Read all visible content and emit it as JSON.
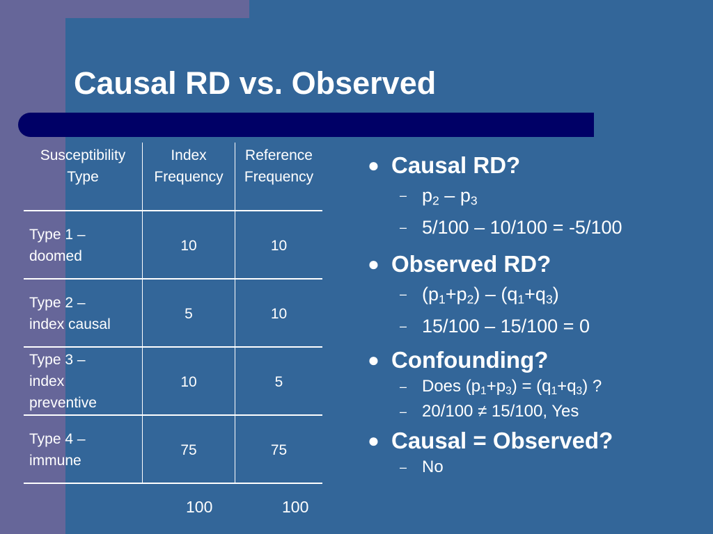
{
  "slide": {
    "title": "Causal RD vs. Observed"
  },
  "table": {
    "headers": [
      [
        "Susceptibility",
        "Type"
      ],
      [
        "Index",
        "Frequency"
      ],
      [
        "Reference",
        "Frequency"
      ]
    ],
    "rows": [
      {
        "type": [
          "Type 1 –",
          "doomed"
        ],
        "index": "10",
        "reference": "10"
      },
      {
        "type": [
          "Type 2 –",
          "index causal"
        ],
        "index": "5",
        "reference": "10"
      },
      {
        "type": [
          "Type 3 –",
          "index",
          "preventive"
        ],
        "index": "10",
        "reference": "5"
      },
      {
        "type": [
          "Type 4 –",
          "immune"
        ],
        "index": "75",
        "reference": "75"
      }
    ],
    "totals": {
      "index": "100",
      "reference": "100"
    }
  },
  "bullets": {
    "causal_rd": {
      "label": "Causal RD?",
      "sub1": {
        "a": "p",
        "a_sub": "2",
        "b": " – p",
        "b_sub": "3"
      },
      "sub2": "5/100 – 10/100 = -5/100"
    },
    "observed_rd": {
      "label": "Observed RD?",
      "sub1": {
        "t1": "(p",
        "s1": "1",
        "t2": "+p",
        "s2": "2",
        "t3": ") – (q",
        "s3": "1",
        "t4": "+q",
        "s4": "3",
        "t5": ")"
      },
      "sub2": "15/100 – 15/100 = 0"
    },
    "confounding": {
      "label": "Confounding?",
      "sub1": {
        "t1": "Does (p",
        "s1": "1",
        "t2": "+p",
        "s2": "3",
        "t3": ") = (q",
        "s3": "1",
        "t4": "+q",
        "s4": "3",
        "t5": ") ?"
      },
      "sub2": "20/100 ≠ 15/100, Yes"
    },
    "causal_equals_observed": {
      "label": "Causal = Observed?",
      "sub1": "No"
    },
    "bullet_glyph": "●",
    "dash_glyph": "–"
  },
  "colors": {
    "background": "#336699",
    "accent_purple": "#666699",
    "title_bar": "#000066",
    "text": "#ffffff"
  }
}
